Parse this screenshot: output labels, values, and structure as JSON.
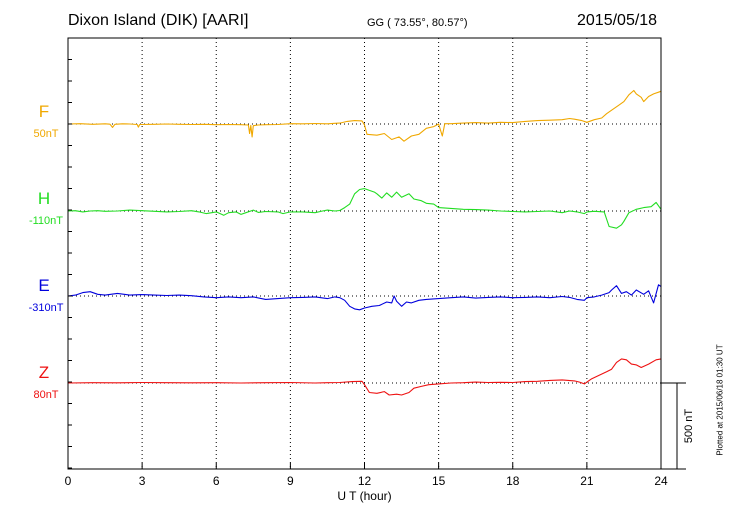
{
  "header": {
    "station": "Dixon Island (DIK)  [AARI]",
    "coords": "GG ( 73.55°,  80.57°)",
    "date": "2015/05/18"
  },
  "footer": {
    "plotted": "Plotted at 2015/06/18 01:30 UT"
  },
  "chart_data": {
    "type": "line",
    "title": "",
    "xlabel": "U T (hour)",
    "xlim": [
      0,
      24
    ],
    "xticks": [
      0,
      3,
      6,
      9,
      12,
      15,
      18,
      21,
      24
    ],
    "scale_bar_label": "500 nT",
    "scale_bar_nT": 500,
    "grid": true,
    "series": [
      {
        "name": "F",
        "baseline_label": "50nT",
        "color": "#f0a800",
        "points": [
          [
            0,
            0
          ],
          [
            0.5,
            2
          ],
          [
            1,
            -2
          ],
          [
            1.5,
            1
          ],
          [
            1.7,
            -1
          ],
          [
            1.8,
            -20
          ],
          [
            1.9,
            -2
          ],
          [
            2.2,
            1
          ],
          [
            2.5,
            0
          ],
          [
            2.8,
            -3
          ],
          [
            2.85,
            -18
          ],
          [
            2.9,
            -3
          ],
          [
            3.5,
            -2
          ],
          [
            4,
            0
          ],
          [
            4.5,
            -2
          ],
          [
            5,
            -3
          ],
          [
            5.5,
            -2
          ],
          [
            6,
            -4
          ],
          [
            6.5,
            -3
          ],
          [
            7,
            -4
          ],
          [
            7.3,
            -6
          ],
          [
            7.35,
            -55
          ],
          [
            7.4,
            -8
          ],
          [
            7.45,
            -75
          ],
          [
            7.5,
            -10
          ],
          [
            7.7,
            -6
          ],
          [
            8,
            -4
          ],
          [
            8.5,
            -3
          ],
          [
            9,
            2
          ],
          [
            9.5,
            1
          ],
          [
            10,
            3
          ],
          [
            10.5,
            1
          ],
          [
            10.8,
            4
          ],
          [
            11,
            5
          ],
          [
            11.3,
            15
          ],
          [
            11.6,
            20
          ],
          [
            11.9,
            18
          ],
          [
            12,
            -5
          ],
          [
            12.1,
            -60
          ],
          [
            12.5,
            -65
          ],
          [
            12.8,
            -55
          ],
          [
            13.1,
            -90
          ],
          [
            13.4,
            -75
          ],
          [
            13.6,
            -100
          ],
          [
            13.9,
            -70
          ],
          [
            14.2,
            -60
          ],
          [
            14.5,
            -25
          ],
          [
            14.8,
            -15
          ],
          [
            15,
            0
          ],
          [
            15.15,
            -70
          ],
          [
            15.25,
            2
          ],
          [
            15.5,
            2
          ],
          [
            16,
            5
          ],
          [
            16.5,
            8
          ],
          [
            17,
            5
          ],
          [
            17.5,
            10
          ],
          [
            18,
            8
          ],
          [
            18.5,
            15
          ],
          [
            19,
            20
          ],
          [
            19.5,
            22
          ],
          [
            20,
            25
          ],
          [
            20.3,
            32
          ],
          [
            20.5,
            28
          ],
          [
            20.8,
            20
          ],
          [
            21,
            10
          ],
          [
            21.3,
            25
          ],
          [
            21.6,
            35
          ],
          [
            21.8,
            60
          ],
          [
            22,
            80
          ],
          [
            22.3,
            110
          ],
          [
            22.5,
            130
          ],
          [
            22.7,
            170
          ],
          [
            22.9,
            195
          ],
          [
            23,
            175
          ],
          [
            23.2,
            155
          ],
          [
            23.3,
            130
          ],
          [
            23.5,
            160
          ],
          [
            23.7,
            175
          ],
          [
            23.9,
            185
          ],
          [
            24,
            190
          ]
        ]
      },
      {
        "name": "H",
        "baseline_label": "-110nT",
        "color": "#22dd22",
        "points": [
          [
            0,
            0
          ],
          [
            0.3,
            2
          ],
          [
            0.6,
            -5
          ],
          [
            0.9,
            0
          ],
          [
            1.2,
            2
          ],
          [
            1.5,
            -2
          ],
          [
            2,
            0
          ],
          [
            2.5,
            5
          ],
          [
            3,
            2
          ],
          [
            3.5,
            -2
          ],
          [
            4,
            -5
          ],
          [
            4.5,
            -3
          ],
          [
            5,
            2
          ],
          [
            5.3,
            -5
          ],
          [
            5.6,
            -15
          ],
          [
            6,
            -5
          ],
          [
            6.3,
            -25
          ],
          [
            6.5,
            -10
          ],
          [
            6.8,
            -5
          ],
          [
            7,
            -20
          ],
          [
            7.2,
            -10
          ],
          [
            7.5,
            5
          ],
          [
            7.7,
            -8
          ],
          [
            8,
            -3
          ],
          [
            8.5,
            -5
          ],
          [
            8.7,
            -15
          ],
          [
            9,
            -5
          ],
          [
            9.5,
            -5
          ],
          [
            10,
            -10
          ],
          [
            10.3,
            0
          ],
          [
            10.5,
            5
          ],
          [
            10.8,
            0
          ],
          [
            11,
            3
          ],
          [
            11.2,
            20
          ],
          [
            11.4,
            40
          ],
          [
            11.6,
            100
          ],
          [
            11.8,
            125
          ],
          [
            12,
            130
          ],
          [
            12.2,
            120
          ],
          [
            12.4,
            110
          ],
          [
            12.5,
            100
          ],
          [
            12.7,
            75
          ],
          [
            12.9,
            105
          ],
          [
            13.1,
            80
          ],
          [
            13.3,
            110
          ],
          [
            13.5,
            80
          ],
          [
            13.8,
            100
          ],
          [
            14,
            70
          ],
          [
            14.3,
            60
          ],
          [
            14.5,
            45
          ],
          [
            14.8,
            40
          ],
          [
            15,
            20
          ],
          [
            15.5,
            15
          ],
          [
            16,
            10
          ],
          [
            16.5,
            8
          ],
          [
            17,
            5
          ],
          [
            17.5,
            0
          ],
          [
            18,
            -3
          ],
          [
            18.5,
            -5
          ],
          [
            19,
            -3
          ],
          [
            19.5,
            0
          ],
          [
            20,
            -10
          ],
          [
            20.3,
            0
          ],
          [
            20.6,
            -5
          ],
          [
            20.9,
            -15
          ],
          [
            21,
            -5
          ],
          [
            21.3,
            -2
          ],
          [
            21.7,
            -5
          ],
          [
            21.9,
            -90
          ],
          [
            22.2,
            -100
          ],
          [
            22.4,
            -80
          ],
          [
            22.5,
            -60
          ],
          [
            22.7,
            -10
          ],
          [
            23,
            10
          ],
          [
            23.3,
            20
          ],
          [
            23.6,
            25
          ],
          [
            23.8,
            50
          ],
          [
            24,
            10
          ]
        ]
      },
      {
        "name": "E",
        "baseline_label": "-310nT",
        "color": "#0000dd",
        "points": [
          [
            0,
            0
          ],
          [
            0.3,
            5
          ],
          [
            0.6,
            20
          ],
          [
            0.9,
            25
          ],
          [
            1.2,
            10
          ],
          [
            1.5,
            5
          ],
          [
            2,
            15
          ],
          [
            2.5,
            5
          ],
          [
            3,
            8
          ],
          [
            3.5,
            5
          ],
          [
            4,
            3
          ],
          [
            4.5,
            5
          ],
          [
            5,
            2
          ],
          [
            5.5,
            -5
          ],
          [
            6,
            -10
          ],
          [
            6.5,
            -5
          ],
          [
            7,
            -10
          ],
          [
            7.5,
            -5
          ],
          [
            8,
            -20
          ],
          [
            8.5,
            -15
          ],
          [
            9,
            -10
          ],
          [
            9.5,
            -8
          ],
          [
            10,
            -5
          ],
          [
            10.5,
            -15
          ],
          [
            10.8,
            -5
          ],
          [
            11,
            -10
          ],
          [
            11.2,
            -25
          ],
          [
            11.4,
            -60
          ],
          [
            11.6,
            -75
          ],
          [
            11.8,
            -80
          ],
          [
            12,
            -70
          ],
          [
            12.3,
            -60
          ],
          [
            12.6,
            -55
          ],
          [
            12.9,
            -35
          ],
          [
            13.1,
            -40
          ],
          [
            13.2,
            0
          ],
          [
            13.3,
            -30
          ],
          [
            13.5,
            -60
          ],
          [
            13.7,
            -35
          ],
          [
            13.9,
            -40
          ],
          [
            14.2,
            -25
          ],
          [
            14.5,
            -20
          ],
          [
            15,
            -15
          ],
          [
            15.5,
            -10
          ],
          [
            16,
            -5
          ],
          [
            16.5,
            -12
          ],
          [
            17,
            -8
          ],
          [
            17.5,
            -5
          ],
          [
            18,
            -10
          ],
          [
            18.5,
            -8
          ],
          [
            19,
            -5
          ],
          [
            19.5,
            -10
          ],
          [
            20,
            -3
          ],
          [
            20.3,
            -8
          ],
          [
            20.6,
            -20
          ],
          [
            20.9,
            -25
          ],
          [
            21,
            -10
          ],
          [
            21.3,
            -5
          ],
          [
            21.6,
            5
          ],
          [
            21.9,
            20
          ],
          [
            22,
            35
          ],
          [
            22.2,
            60
          ],
          [
            22.4,
            15
          ],
          [
            22.6,
            25
          ],
          [
            22.8,
            5
          ],
          [
            23,
            35
          ],
          [
            23.3,
            10
          ],
          [
            23.5,
            30
          ],
          [
            23.7,
            -40
          ],
          [
            23.9,
            65
          ],
          [
            24,
            55
          ]
        ]
      },
      {
        "name": "Z",
        "baseline_label": "80nT",
        "color": "#ee1111",
        "points": [
          [
            0,
            0
          ],
          [
            1,
            2
          ],
          [
            2,
            1
          ],
          [
            3,
            3
          ],
          [
            4,
            2
          ],
          [
            5,
            1
          ],
          [
            6,
            2
          ],
          [
            7,
            0
          ],
          [
            8,
            2
          ],
          [
            9,
            3
          ],
          [
            10,
            0
          ],
          [
            10.5,
            2
          ],
          [
            11,
            3
          ],
          [
            11.5,
            8
          ],
          [
            11.9,
            10
          ],
          [
            12,
            -10
          ],
          [
            12.2,
            -55
          ],
          [
            12.5,
            -60
          ],
          [
            12.8,
            -50
          ],
          [
            13,
            -70
          ],
          [
            13.3,
            -65
          ],
          [
            13.5,
            -70
          ],
          [
            13.8,
            -55
          ],
          [
            14,
            -30
          ],
          [
            14.3,
            -20
          ],
          [
            14.6,
            -10
          ],
          [
            15,
            -5
          ],
          [
            15.5,
            0
          ],
          [
            16,
            2
          ],
          [
            16.5,
            5
          ],
          [
            17,
            3
          ],
          [
            17.5,
            4
          ],
          [
            18,
            3
          ],
          [
            18.5,
            8
          ],
          [
            19,
            10
          ],
          [
            19.5,
            15
          ],
          [
            20,
            18
          ],
          [
            20.5,
            12
          ],
          [
            20.7,
            5
          ],
          [
            20.9,
            -5
          ],
          [
            21,
            5
          ],
          [
            21.2,
            25
          ],
          [
            21.5,
            45
          ],
          [
            21.8,
            65
          ],
          [
            22,
            80
          ],
          [
            22.2,
            120
          ],
          [
            22.4,
            140
          ],
          [
            22.6,
            135
          ],
          [
            22.8,
            110
          ],
          [
            23,
            105
          ],
          [
            23.2,
            90
          ],
          [
            23.5,
            110
          ],
          [
            23.8,
            135
          ],
          [
            24,
            140
          ]
        ]
      }
    ]
  }
}
